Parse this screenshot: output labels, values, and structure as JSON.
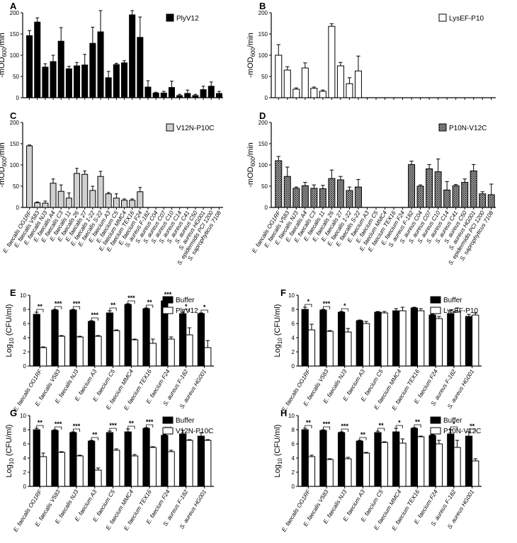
{
  "chart_data": [
    {
      "id": "A",
      "panel_label": "A",
      "type": "bar",
      "ylabel": "-mOD600/min",
      "ylim": [
        0,
        200
      ],
      "yticks": [
        0,
        50,
        100,
        150,
        200
      ],
      "legend": "PlyV12",
      "fill": "#000000",
      "categories": "od",
      "values": [
        146,
        178,
        72,
        85,
        133,
        68,
        75,
        77,
        128,
        155,
        47,
        78,
        82,
        195,
        142,
        25,
        11,
        11,
        24,
        5,
        10,
        5,
        19,
        27,
        10
      ],
      "errors": [
        12,
        10,
        8,
        15,
        32,
        6,
        8,
        25,
        38,
        50,
        15,
        3,
        5,
        10,
        48,
        15,
        2,
        4,
        15,
        3,
        8,
        3,
        8,
        10,
        5
      ]
    },
    {
      "id": "B",
      "panel_label": "B",
      "type": "bar",
      "ylabel": "-mOD600/min",
      "ylim": [
        0,
        200
      ],
      "yticks": [
        0,
        50,
        100,
        150,
        200
      ],
      "legend": "LysEF-P10",
      "fill": "#ffffff",
      "categories": "od",
      "values": [
        100,
        65,
        20,
        70,
        22,
        15,
        168,
        75,
        33,
        63,
        0,
        0,
        0,
        0,
        0,
        0,
        0,
        0,
        0,
        0,
        0,
        0,
        0,
        0,
        0
      ],
      "errors": [
        25,
        8,
        3,
        12,
        3,
        3,
        6,
        8,
        14,
        35,
        0,
        0,
        0,
        0,
        0,
        0,
        0,
        0,
        0,
        0,
        0,
        0,
        0,
        0,
        0
      ]
    },
    {
      "id": "C",
      "panel_label": "C",
      "type": "bar",
      "ylabel": "-mOD600/min",
      "ylim": [
        0,
        200
      ],
      "yticks": [
        0,
        50,
        100,
        150,
        200
      ],
      "legend": "V12N-P10C",
      "fill": "#d0d0d0",
      "categories": "od",
      "values": [
        145,
        11,
        10,
        57,
        38,
        22,
        80,
        78,
        40,
        73,
        32,
        22,
        17,
        17,
        37,
        0,
        0,
        0,
        0,
        0,
        0,
        0,
        0,
        0,
        0
      ],
      "errors": [
        2,
        2,
        5,
        10,
        15,
        12,
        12,
        8,
        10,
        12,
        3,
        10,
        3,
        3,
        10,
        0,
        0,
        0,
        0,
        0,
        0,
        0,
        0,
        0,
        0
      ]
    },
    {
      "id": "D",
      "panel_label": "D",
      "type": "bar",
      "ylabel": "-mOD600/min",
      "ylim": [
        0,
        200
      ],
      "yticks": [
        0,
        50,
        100,
        150,
        200
      ],
      "legend": "P10N-V12C",
      "fill": "hatch",
      "categories": "od",
      "values": [
        110,
        73,
        45,
        51,
        45,
        44,
        68,
        65,
        40,
        48,
        0,
        0,
        0,
        0,
        0,
        101,
        50,
        91,
        84,
        41,
        51,
        59,
        86,
        32,
        30
      ],
      "errors": [
        10,
        22,
        3,
        8,
        8,
        8,
        20,
        8,
        8,
        18,
        0,
        0,
        0,
        0,
        0,
        8,
        3,
        10,
        30,
        20,
        3,
        8,
        15,
        5,
        25
      ]
    },
    {
      "id": "E",
      "panel_label": "E",
      "type": "paired_bar",
      "ylabel": "Log10 (CFU/ml)",
      "ylim": [
        0,
        10
      ],
      "yticks": [
        0,
        2,
        4,
        6,
        8,
        10
      ],
      "legend": [
        "Buffer",
        "PlyV12"
      ],
      "buffer": [
        7.3,
        7.9,
        7.9,
        6.3,
        7.5,
        8.7,
        8.1,
        9.2,
        7.4,
        7.4
      ],
      "buffer_err": [
        0.3,
        0.1,
        0.1,
        0.1,
        0.3,
        0.1,
        0.1,
        0.1,
        0.2,
        0.1
      ],
      "treated": [
        2.6,
        4.2,
        4.1,
        4.2,
        5.0,
        3.7,
        3.2,
        3.8,
        4.4,
        2.6
      ],
      "treated_err": [
        0.1,
        0.1,
        0.1,
        0.1,
        0.1,
        0.1,
        0.6,
        0.3,
        1.0,
        1.0
      ],
      "sig": [
        "**",
        "***",
        "***",
        "***",
        "**",
        "***",
        "**",
        "***",
        "*",
        "*"
      ]
    },
    {
      "id": "F",
      "panel_label": "F",
      "type": "paired_bar",
      "ylabel": "Log10 (CFU/ml)",
      "ylim": [
        0,
        10
      ],
      "yticks": [
        0,
        2,
        4,
        6,
        8,
        10
      ],
      "legend": [
        "Buffer",
        "LysEF-P10"
      ],
      "buffer": [
        8.0,
        7.9,
        7.6,
        6.4,
        7.6,
        7.8,
        8.2,
        7.2,
        7.4,
        7.0
      ],
      "buffer_err": [
        0.3,
        0.1,
        0.1,
        0.1,
        0.1,
        0.3,
        0.1,
        0.1,
        0.5,
        0.3
      ],
      "treated": [
        5.1,
        4.9,
        4.8,
        6.0,
        7.5,
        7.8,
        7.8,
        6.7,
        7.7,
        7.2
      ],
      "treated_err": [
        0.8,
        0.1,
        0.5,
        0.3,
        0.2,
        0.5,
        0.3,
        0.3,
        0.5,
        0.3
      ],
      "sig": [
        "*",
        "***",
        "*",
        "",
        "",
        "",
        "",
        "",
        "",
        ""
      ]
    },
    {
      "id": "G",
      "panel_label": "G",
      "type": "paired_bar",
      "ylabel": "Log10 (CFU/ml)",
      "ylim": [
        0,
        10
      ],
      "yticks": [
        0,
        2,
        4,
        6,
        8,
        10
      ],
      "legend": [
        "Buffer",
        "V12N-P10C"
      ],
      "buffer": [
        8.0,
        7.9,
        7.6,
        6.4,
        7.6,
        7.7,
        8.2,
        7.2,
        7.4,
        7.1
      ],
      "buffer_err": [
        0.2,
        0.1,
        0.1,
        0.1,
        0.2,
        0.4,
        0.1,
        0.1,
        0.5,
        0.5
      ],
      "treated": [
        4.2,
        4.8,
        4.3,
        2.3,
        5.1,
        4.3,
        5.5,
        4.9,
        6.5,
        6.5
      ],
      "treated_err": [
        0.5,
        0.1,
        0.1,
        0.3,
        0.2,
        0.2,
        0.1,
        0.2,
        0.1,
        0.1
      ],
      "sig": [
        "**",
        "***",
        "***",
        "**",
        "***",
        "**",
        "***",
        "***",
        "",
        ""
      ]
    },
    {
      "id": "H",
      "panel_label": "H",
      "type": "paired_bar",
      "ylabel": "Log10 (CFU/ml)",
      "ylim": [
        0,
        10
      ],
      "yticks": [
        0,
        2,
        4,
        6,
        8,
        10
      ],
      "legend": [
        "Buffer",
        "P10N-V12C"
      ],
      "buffer": [
        8.0,
        7.9,
        7.6,
        6.4,
        7.6,
        7.7,
        8.2,
        7.2,
        7.4,
        7.1
      ],
      "buffer_err": [
        0.2,
        0.1,
        0.1,
        0.1,
        0.2,
        0.5,
        0.1,
        0.1,
        0.6,
        0.6
      ],
      "treated": [
        4.2,
        3.8,
        3.9,
        4.7,
        6.2,
        6.1,
        7.0,
        6.0,
        5.5,
        3.6
      ],
      "treated_err": [
        0.2,
        0.1,
        0.2,
        0.1,
        0.1,
        0.6,
        0.1,
        0.5,
        1.0,
        0.3
      ],
      "sig": [
        "**",
        "***",
        "***",
        "**",
        "**",
        "*",
        "**",
        "",
        "*",
        "**"
      ]
    }
  ],
  "od_categories": [
    "E. faecalis OG1RF",
    "E. faecalis V583",
    "E. faecalis NJ3",
    "E. faecalis A4",
    "E. faecalis C3",
    "E. faecalis 11",
    "E. faecalis 26",
    "E. faecalis 27",
    "E. faecalis 1-22",
    "E. faecalis S-22",
    "E. faecium A3",
    "E. faecium C5",
    "E. faecium MMC4",
    "E. faecium TEX16",
    "E. faecium F24",
    "S. aureus F-182",
    "S. aureus C04",
    "S. aureus C07",
    "S. aureus C10",
    "S. aureus C14",
    "S. aureus C41",
    "S. aureus C50",
    "S. aureus HG001",
    "S. epidermidis PCI 1200",
    "S. saprophyticus 7108"
  ],
  "cfu_categories": [
    "E. faecalis OG1RF",
    "E. faecalis V583",
    "E. faecalis NJ3",
    "E. faecium A3",
    "E. faecium C5",
    "E. faecium MMC4",
    "E. faecium TEX16",
    "E. faecium F24",
    "S. aureus F-182",
    "S. aureus HG001"
  ]
}
